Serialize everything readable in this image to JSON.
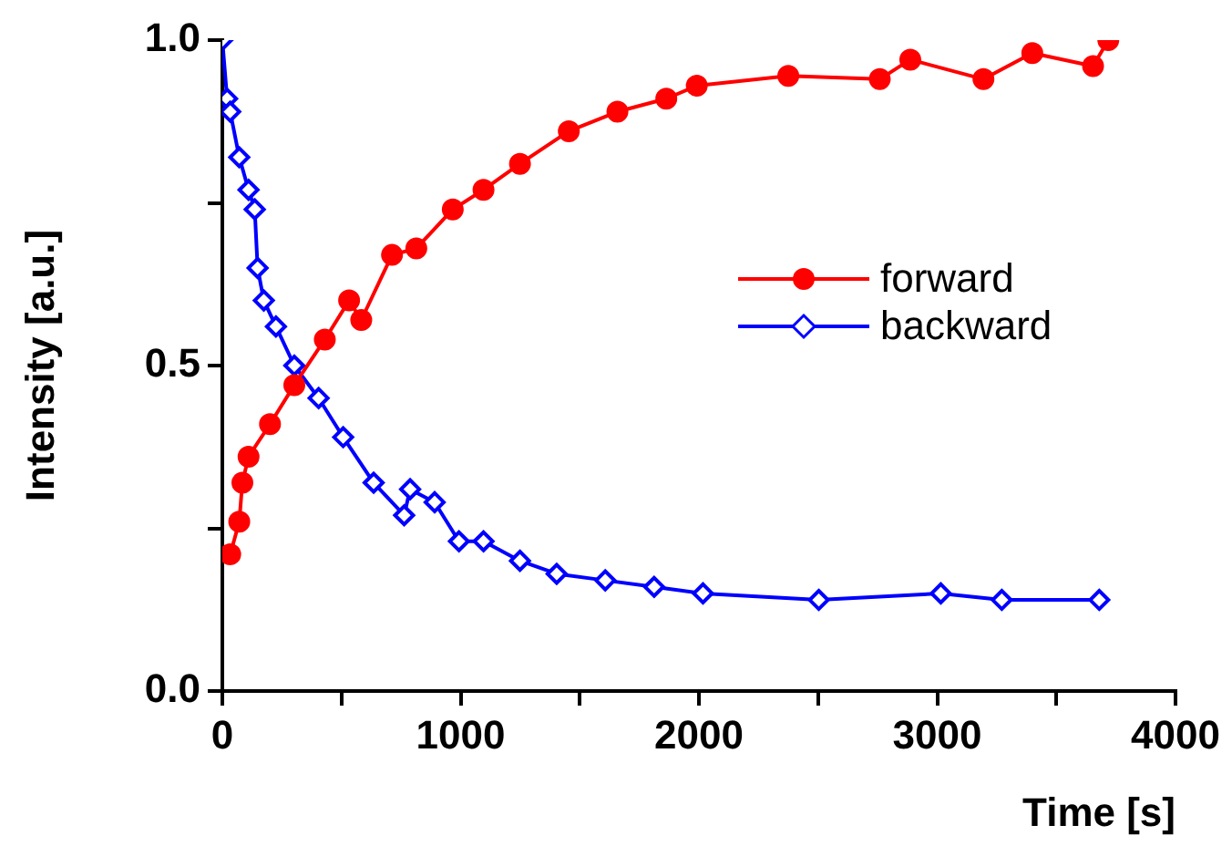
{
  "chart_data": {
    "type": "line",
    "xlabel": "Time [s]",
    "ylabel": "Intensity [a.u.]",
    "xlim": [
      0,
      4000
    ],
    "ylim": [
      0,
      1.0
    ],
    "xticks": [
      0,
      {
        "value": 500,
        "label": null
      },
      1000,
      {
        "value": 1500,
        "label": null
      },
      2000,
      {
        "value": 2500,
        "label": null
      },
      3000,
      {
        "value": 3500,
        "label": null
      },
      4000
    ],
    "yticks": [
      {
        "value": 0,
        "label": "0.0"
      },
      {
        "value": 0.25,
        "label": null
      },
      {
        "value": 0.5,
        "label": "0.5"
      },
      {
        "value": 0.75,
        "label": null
      },
      {
        "value": 1.0,
        "label": "1.0"
      }
    ],
    "grid": false,
    "legend": "right",
    "line_style": "solid",
    "series": [
      {
        "name": "forward",
        "color": "#ff0000",
        "marker": "circle",
        "x": [
          33,
          71,
          84,
          110,
          200,
          302,
          430,
          532,
          583,
          712,
          814,
          967,
          1096,
          1249,
          1454,
          1658,
          1863,
          1991,
          2375,
          2759,
          2887,
          3194,
          3399,
          3654,
          3718
        ],
        "values": [
          0.21,
          0.26,
          0.32,
          0.36,
          0.41,
          0.47,
          0.54,
          0.6,
          0.57,
          0.67,
          0.68,
          0.74,
          0.77,
          0.81,
          0.86,
          0.89,
          0.91,
          0.93,
          0.945,
          0.94,
          0.97,
          0.94,
          0.98,
          0.96,
          1.0
        ]
      },
      {
        "name": "backward",
        "color": "#0000ff",
        "marker": "diamond",
        "x": [
          0,
          20,
          33,
          71,
          110,
          136,
          148,
          174,
          225,
          302,
          404,
          507,
          635,
          763,
          788,
          891,
          993,
          1096,
          1249,
          1403,
          1607,
          1812,
          2017,
          2503,
          3015,
          3271,
          3680
        ],
        "values": [
          1.0,
          0.91,
          0.89,
          0.82,
          0.77,
          0.74,
          0.65,
          0.6,
          0.56,
          0.5,
          0.45,
          0.39,
          0.32,
          0.27,
          0.31,
          0.29,
          0.23,
          0.23,
          0.2,
          0.18,
          0.17,
          0.16,
          0.15,
          0.14,
          0.15,
          0.14,
          0.14
        ]
      }
    ]
  }
}
